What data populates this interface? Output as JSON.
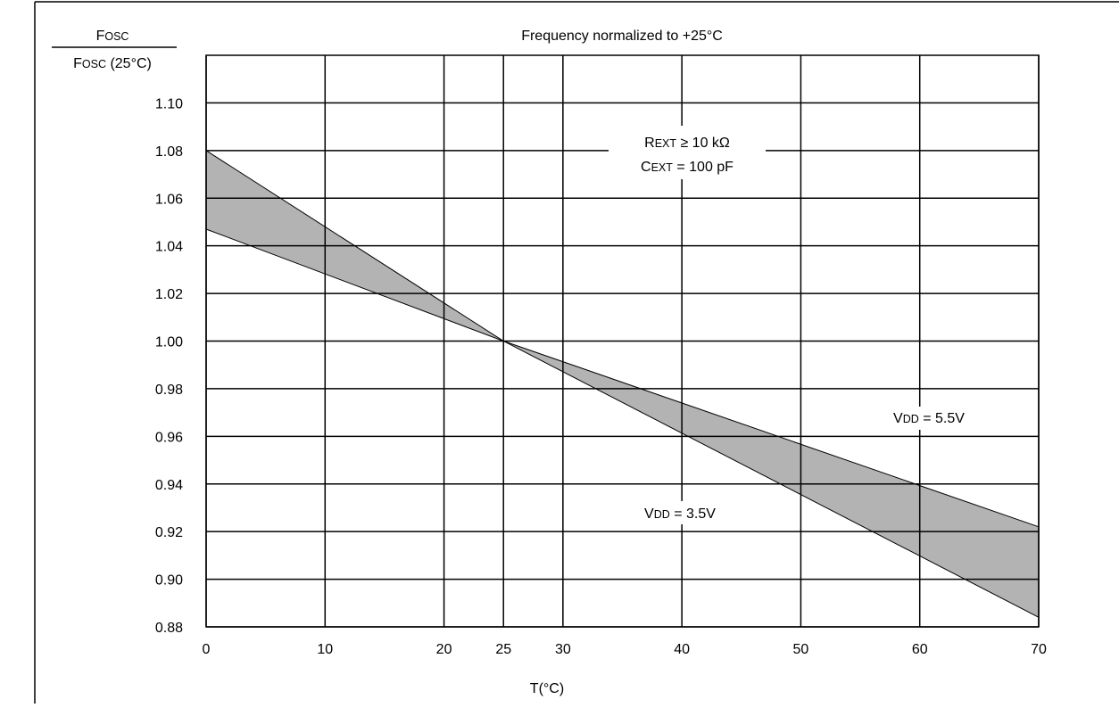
{
  "chart_data": {
    "type": "area",
    "title": "Frequency normalized to +25°C",
    "ylabel": {
      "numerator": {
        "cap": "F",
        "small": "OSC",
        "rest": ""
      },
      "denominator": {
        "cap": "F",
        "small": "OSC",
        "rest": " (25°C)"
      }
    },
    "xlabel": "T(°C)",
    "xlim": [
      0,
      70
    ],
    "ylim": [
      0.88,
      1.12
    ],
    "x_ticks": [
      0,
      10,
      20,
      25,
      30,
      40,
      50,
      60,
      70
    ],
    "x_tick_labels": [
      "0",
      "10",
      "20",
      "25",
      "30",
      "40",
      "50",
      "60",
      "70"
    ],
    "y_ticks": [
      0.88,
      0.9,
      0.92,
      0.94,
      0.96,
      0.98,
      1.0,
      1.02,
      1.04,
      1.06,
      1.08,
      1.1
    ],
    "y_tick_labels": [
      "0.88",
      "0.90",
      "0.92",
      "0.94",
      "0.96",
      "0.98",
      "1.00",
      "1.02",
      "1.04",
      "1.06",
      "1.08",
      "1.10"
    ],
    "grid": true,
    "series": [
      {
        "name": "VDD = 3.5V",
        "x": [
          0,
          25,
          70
        ],
        "values": [
          1.08,
          1.0,
          0.884
        ]
      },
      {
        "name": "VDD = 5.5V",
        "x": [
          0,
          25,
          70
        ],
        "values": [
          1.047,
          1.0,
          0.922
        ]
      }
    ],
    "fill_color": "#b3b3b3",
    "annotations": {
      "rext": {
        "cap": "R",
        "small": "EXT",
        "rest": " ≥ 10 kΩ"
      },
      "cext": {
        "cap": "C",
        "small": "EXT",
        "rest": " = 100 pF"
      },
      "vdd_high": {
        "cap": "V",
        "small": "DD",
        "rest": " = 5.5V"
      },
      "vdd_low": {
        "cap": "V",
        "small": "DD",
        "rest": " = 3.5V"
      }
    }
  }
}
